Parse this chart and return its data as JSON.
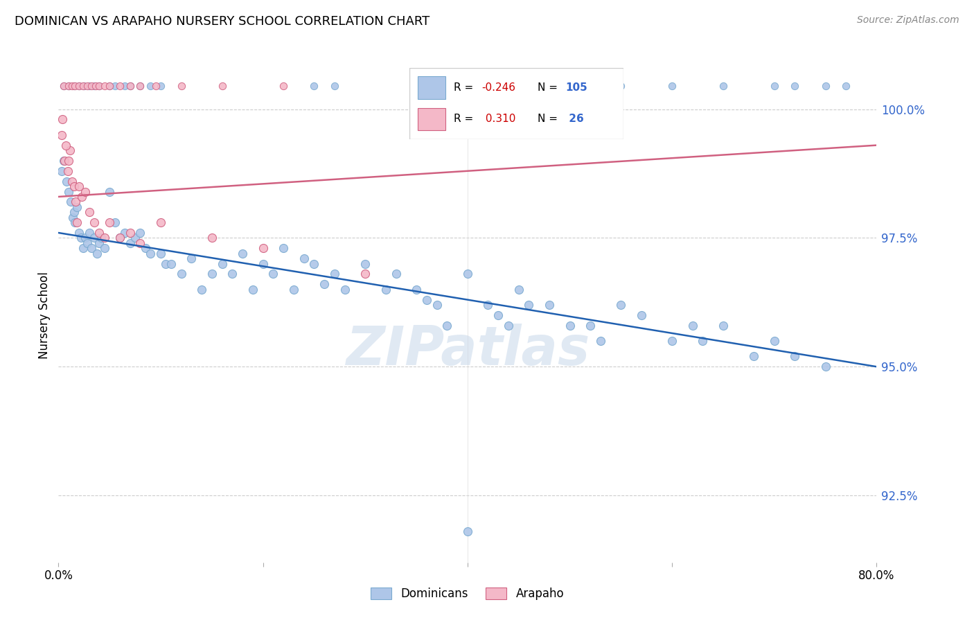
{
  "title": "DOMINICAN VS ARAPAHO NURSERY SCHOOL CORRELATION CHART",
  "source": "Source: ZipAtlas.com",
  "ylabel": "Nursery School",
  "xlim": [
    0.0,
    80.0
  ],
  "ylim": [
    91.2,
    100.8
  ],
  "yticks": [
    92.5,
    95.0,
    97.5,
    100.0
  ],
  "ytick_labels": [
    "92.5%",
    "95.0%",
    "97.5%",
    "100.0%"
  ],
  "watermark": "ZIPatlas",
  "blue_R": -0.246,
  "blue_N": 105,
  "pink_R": 0.31,
  "pink_N": 26,
  "blue_color": "#aec6e8",
  "blue_edge_color": "#7aaad0",
  "blue_line_color": "#2060b0",
  "pink_color": "#f4b8c8",
  "pink_edge_color": "#d06080",
  "pink_line_color": "#d06080",
  "blue_line_x": [
    0.0,
    80.0
  ],
  "blue_line_y": [
    97.6,
    95.0
  ],
  "pink_line_x": [
    0.0,
    80.0
  ],
  "pink_line_y": [
    98.3,
    99.3
  ],
  "blue_top_x": [
    0.5,
    1.0,
    1.5,
    2.0,
    2.5,
    3.0,
    3.5,
    4.0,
    5.0,
    5.5,
    6.5,
    7.0,
    8.0,
    9.0,
    10.0,
    25.0,
    27.0,
    35.0,
    40.0,
    55.0,
    60.0,
    65.0,
    70.0,
    72.0,
    75.0,
    77.0
  ],
  "blue_top_y": [
    100.45,
    100.45,
    100.45,
    100.45,
    100.45,
    100.45,
    100.45,
    100.45,
    100.45,
    100.45,
    100.45,
    100.45,
    100.45,
    100.45,
    100.45,
    100.45,
    100.45,
    100.45,
    100.45,
    100.45,
    100.45,
    100.45,
    100.45,
    100.45,
    100.45,
    100.45
  ],
  "pink_top_x": [
    0.5,
    1.0,
    1.3,
    1.6,
    2.0,
    2.4,
    2.8,
    3.2,
    3.6,
    4.0,
    4.5,
    5.0,
    6.0,
    7.0,
    8.0,
    9.5,
    12.0,
    16.0,
    22.0
  ],
  "pink_top_y": [
    100.45,
    100.45,
    100.45,
    100.45,
    100.45,
    100.45,
    100.45,
    100.45,
    100.45,
    100.45,
    100.45,
    100.45,
    100.45,
    100.45,
    100.45,
    100.45,
    100.45,
    100.45,
    100.45
  ],
  "blue_x": [
    0.3,
    0.5,
    0.8,
    1.0,
    1.2,
    1.4,
    1.5,
    1.6,
    1.8,
    2.0,
    2.2,
    2.4,
    2.6,
    2.8,
    3.0,
    3.2,
    3.5,
    3.8,
    4.0,
    4.2,
    4.5,
    5.0,
    5.5,
    6.0,
    6.5,
    7.0,
    7.5,
    8.0,
    8.5,
    9.0,
    10.0,
    10.5,
    11.0,
    12.0,
    13.0,
    14.0,
    15.0,
    16.0,
    17.0,
    18.0,
    19.0,
    20.0,
    21.0,
    22.0,
    23.0,
    24.0,
    25.0,
    26.0,
    27.0,
    28.0,
    30.0,
    32.0,
    33.0,
    35.0,
    36.0,
    37.0,
    38.0,
    40.0,
    42.0,
    43.0,
    44.0,
    45.0,
    46.0,
    48.0,
    50.0,
    52.0,
    53.0,
    55.0,
    57.0,
    60.0,
    62.0,
    63.0,
    65.0,
    68.0,
    70.0,
    72.0,
    75.0,
    40.0
  ],
  "blue_y": [
    98.8,
    99.0,
    98.6,
    98.4,
    98.2,
    97.9,
    98.0,
    97.8,
    98.1,
    97.6,
    97.5,
    97.3,
    97.5,
    97.4,
    97.6,
    97.3,
    97.5,
    97.2,
    97.4,
    97.5,
    97.3,
    98.4,
    97.8,
    97.5,
    97.6,
    97.4,
    97.5,
    97.6,
    97.3,
    97.2,
    97.2,
    97.0,
    97.0,
    96.8,
    97.1,
    96.5,
    96.8,
    97.0,
    96.8,
    97.2,
    96.5,
    97.0,
    96.8,
    97.3,
    96.5,
    97.1,
    97.0,
    96.6,
    96.8,
    96.5,
    97.0,
    96.5,
    96.8,
    96.5,
    96.3,
    96.2,
    95.8,
    96.8,
    96.2,
    96.0,
    95.8,
    96.5,
    96.2,
    96.2,
    95.8,
    95.8,
    95.5,
    96.2,
    96.0,
    95.5,
    95.8,
    95.5,
    95.8,
    95.2,
    95.5,
    95.2,
    95.0,
    91.8
  ],
  "pink_x": [
    0.3,
    0.6,
    0.9,
    1.1,
    1.3,
    1.5,
    1.7,
    2.0,
    2.3,
    2.6,
    3.0,
    3.5,
    4.0,
    4.5,
    5.0,
    6.0,
    7.0,
    8.0,
    10.0,
    15.0,
    20.0,
    30.0,
    0.4,
    0.7,
    1.0,
    1.8
  ],
  "pink_y": [
    99.5,
    99.0,
    98.8,
    99.2,
    98.6,
    98.5,
    98.2,
    98.5,
    98.3,
    98.4,
    98.0,
    97.8,
    97.6,
    97.5,
    97.8,
    97.5,
    97.6,
    97.4,
    97.8,
    97.5,
    97.3,
    96.8,
    99.8,
    99.3,
    99.0,
    97.8
  ]
}
